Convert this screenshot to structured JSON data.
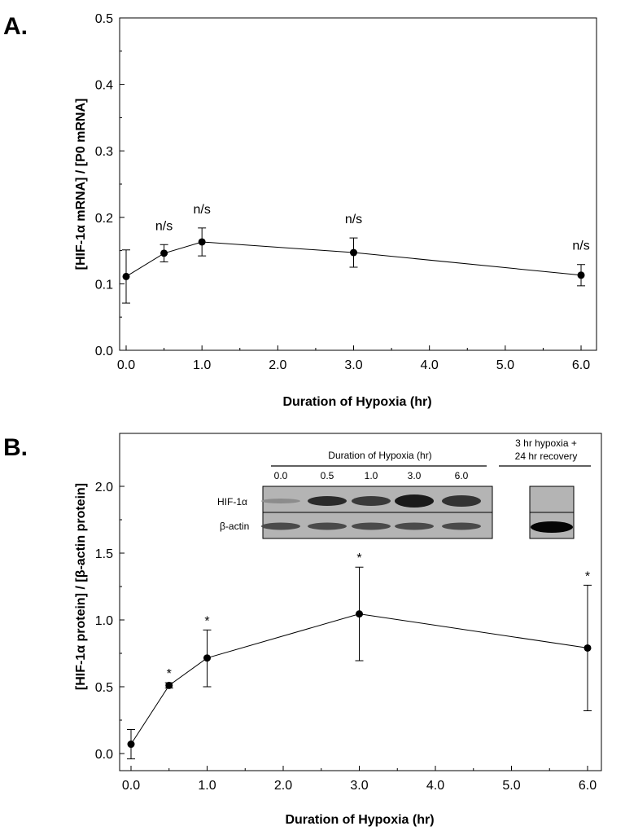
{
  "chart_data": [
    {
      "type": "line",
      "panel_label": "A.",
      "ylabel": "[HIF-1α mRNA] / [P0 mRNA]",
      "xlabel": "Duration of Hypoxia (hr)",
      "xlim": [
        -0.1,
        6.2
      ],
      "ylim": [
        0,
        0.5
      ],
      "x_ticks": [
        0,
        1,
        2,
        3,
        4,
        5,
        6
      ],
      "x_tick_labels": [
        "0.0",
        "1.0",
        "2.0",
        "3.0",
        "4.0",
        "5.0",
        "6.0"
      ],
      "y_ticks": [
        0,
        0.1,
        0.2,
        0.3,
        0.4,
        0.5
      ],
      "y_tick_labels": [
        "0.0",
        "0.1",
        "0.2",
        "0.3",
        "0.4",
        "0.5"
      ],
      "series": [
        {
          "name": "HIF-1α mRNA",
          "x": [
            0,
            0.5,
            1,
            3,
            6
          ],
          "y": [
            0.111,
            0.146,
            0.163,
            0.147,
            0.113
          ],
          "err_low": [
            0.071,
            0.133,
            0.142,
            0.125,
            0.097
          ],
          "err_high": [
            0.151,
            0.159,
            0.184,
            0.169,
            0.129
          ],
          "annotations": [
            "",
            "n/s",
            "n/s",
            "n/s",
            "n/s"
          ]
        }
      ]
    },
    {
      "type": "line",
      "panel_label": "B.",
      "ylabel": "[HIF-1α protein] / [β-actin protein]",
      "xlabel": "Duration of Hypoxia (hr)",
      "xlim": [
        -0.1,
        6.2
      ],
      "ylim": [
        -0.1,
        2.4
      ],
      "x_ticks": [
        0,
        1,
        2,
        3,
        4,
        5,
        6
      ],
      "x_tick_labels": [
        "0.0",
        "1.0",
        "2.0",
        "3.0",
        "4.0",
        "5.0",
        "6.0"
      ],
      "y_ticks": [
        0,
        0.5,
        1,
        1.5,
        2
      ],
      "y_tick_labels": [
        "0.0",
        "0.5",
        "1.0",
        "1.5",
        "2.0"
      ],
      "series": [
        {
          "name": "HIF-1α protein",
          "x": [
            0,
            0.5,
            1,
            3,
            6
          ],
          "y": [
            0.07,
            0.51,
            0.715,
            1.045,
            0.79
          ],
          "err_low": [
            -0.04,
            0.49,
            0.5,
            0.695,
            0.32
          ],
          "err_high": [
            0.18,
            0.53,
            0.925,
            1.395,
            1.26
          ],
          "annotations": [
            "",
            "*",
            "*",
            "*",
            "*"
          ]
        }
      ],
      "inset": {
        "title": "Duration of Hypoxia (hr)",
        "lanes": [
          "0.0",
          "0.5",
          "1.0",
          "3.0",
          "6.0"
        ],
        "rows": [
          "HIF-1α",
          "β-actin"
        ],
        "recovery_title_line1": "3 hr hypoxia +",
        "recovery_title_line2": "24 hr recovery"
      }
    }
  ]
}
